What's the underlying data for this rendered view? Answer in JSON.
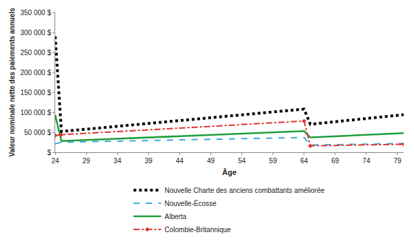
{
  "chart_data": {
    "type": "line",
    "x_label": "Âge",
    "y_label": "Valeur nominale nette des paiements annuels",
    "xlim": [
      24,
      80
    ],
    "xticks": [
      24,
      29,
      34,
      39,
      44,
      49,
      54,
      59,
      64,
      69,
      74,
      79
    ],
    "ylim": [
      0,
      350000
    ],
    "yticks": [
      {
        "value": 0,
        "label": "$"
      },
      {
        "value": 50000,
        "label": "50 000 $"
      },
      {
        "value": 100000,
        "label": "100 000 $"
      },
      {
        "value": 150000,
        "label": "150 000 $"
      },
      {
        "value": 200000,
        "label": "200 000 $"
      },
      {
        "value": 250000,
        "label": "250 000 $"
      },
      {
        "value": 300000,
        "label": "300 000 $"
      },
      {
        "value": 350000,
        "label": "350 000 $"
      }
    ],
    "grid": false,
    "legend": "bottom",
    "series": [
      {
        "name": "Nouvelle Charte des anciens combattants améliorée",
        "color": "#000000",
        "line_style": "dotted",
        "marker": "none",
        "x": [
          24,
          25,
          64,
          65,
          80
        ],
        "values": [
          290000,
          52000,
          108000,
          70000,
          94000
        ]
      },
      {
        "name": "Nouvelle-Écosse",
        "color": "#3ea8de",
        "line_style": "dashed",
        "marker": "none",
        "x": [
          24,
          25,
          64,
          65,
          80
        ],
        "values": [
          21000,
          25000,
          37000,
          18000,
          22000
        ]
      },
      {
        "name": "Alberta",
        "color": "#1f9e3c",
        "line_style": "solid",
        "marker": "none",
        "x": [
          24,
          25,
          64,
          65,
          80
        ],
        "values": [
          93000,
          28000,
          53000,
          37000,
          48000
        ]
      },
      {
        "name": "Colombie-Britannique",
        "color": "#e0312f",
        "line_style": "dashdot",
        "marker": "diamond",
        "x": [
          24,
          25,
          64,
          65,
          80
        ],
        "values": [
          42000,
          44000,
          78000,
          16000,
          20000
        ]
      }
    ]
  }
}
